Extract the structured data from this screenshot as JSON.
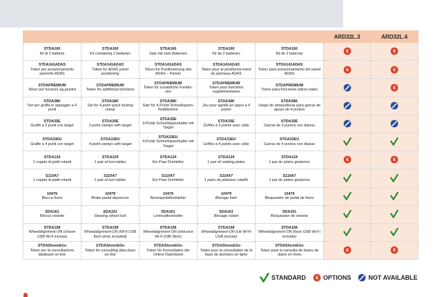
{
  "header": {
    "col_l3": "ARD32L.3",
    "col_l4": "ARD32L.4"
  },
  "rows": [
    {
      "cells": [
        {
          "code": "STDA160",
          "desc": "Kit di 2 batterie"
        },
        {
          "code": "STDA160",
          "desc": "Kit containing 2 batteries"
        },
        {
          "code": "STDA160",
          "desc": "Satz mit zwei Batterien"
        },
        {
          "code": "STDA160",
          "desc": "Kit de 2 batteries"
        },
        {
          "code": "STDA160",
          "desc": "Kit de 2 baterías"
        }
      ],
      "l3": "option",
      "l4": "option"
    },
    {
      "cells": [
        {
          "code": "STDA141ADAS",
          "desc": "Token per posizionamento pannello ADAS"
        },
        {
          "code": "STDA141ADAS",
          "desc": "Token for ADAS panel positioning"
        },
        {
          "code": "STDA141ADAS",
          "desc": "Token für Positionierung des ADAS – Panels"
        },
        {
          "code": "STDA141ADAS",
          "desc": "Token pour le positionne-ment du panneau ADAS"
        },
        {
          "code": "STDA141ADAS",
          "desc": "Token para posicionamiento del panel ADAS"
        }
      ],
      "l3": "option",
      "l4": "option"
    },
    {
      "cells": [
        {
          "code": "STDAPREMIUM",
          "desc": "Token per funzioni ag-giuntivi"
        },
        {
          "code": "STDAPREMIUM",
          "desc": "Token for additional functions"
        },
        {
          "code": "STDAPREMIUM",
          "desc": "Token für zusätzliche Funktio-nen"
        },
        {
          "code": "STDAPREMIUM",
          "desc": "Token pour fonctions supplémentaires"
        },
        {
          "code": "STDAPREMIUM",
          "desc": "Token para funciones adicio-nales"
        }
      ],
      "l3": "not_available",
      "l4": "option"
    },
    {
      "cells": [
        {
          "code": "STDA38K",
          "desc": "Set per graffa in appoggio a 4 punti"
        },
        {
          "code": "STDA38K",
          "desc": "Set for 4-point quick locking clamp"
        },
        {
          "code": "STDA38K",
          "desc": "Satz für 4-Punkt Schnellspann-Radklemme"
        },
        {
          "code": "STDA38K",
          "desc": "Jeu pour agrafe en appui à 4 points"
        },
        {
          "code": "STDA38K",
          "desc": "Juego de abrazaderas para garras de apoyo de 4 puntos"
        }
      ],
      "l3": "not_available",
      "l4": "not_available"
    },
    {
      "cells": [
        {
          "code": "STDA35E",
          "desc": "Graffe a 3 punti con target"
        },
        {
          "code": "STDA35E",
          "desc": "3-point clamps with target"
        },
        {
          "code": "STDA35E",
          "desc": "3-Punkt Schnellspannhalter mit Target"
        },
        {
          "code": "STDA35E",
          "desc": "Griffes à 3 points avec cible"
        },
        {
          "code": "STDA35E",
          "desc": "Garras de 3 puntos con dianas"
        }
      ],
      "l3": "not_available",
      "l4": "not_available"
    },
    {
      "cells": [
        {
          "code": "STDA33EU",
          "desc": "Graffe a 4 punti con target"
        },
        {
          "code": "STDA33EU",
          "desc": "4-point clamps with target"
        },
        {
          "code": "STDA33EU",
          "desc": "4-Punkt Schnellspannhalter mit Target"
        },
        {
          "code": "STDA33EU",
          "desc": "Griffes à 4 points avec cible"
        },
        {
          "code": "STDA33EU",
          "desc": "Garras de 4 puntos con dianas"
        }
      ],
      "l3": "standard",
      "l4": "standard"
    },
    {
      "cells": [
        {
          "code": "STDA124",
          "desc": "1 coppia di piatti rotanti"
        },
        {
          "code": "STDA124",
          "desc": "1 pair of turn tables"
        },
        {
          "code": "STDA124",
          "desc": "Ein Paar Drehteller"
        },
        {
          "code": "STDA124",
          "desc": "1 pair of rotating plates"
        },
        {
          "code": "STDA124",
          "desc": "1 par de platos giratorios"
        }
      ],
      "l3": "option",
      "l4": "option"
    },
    {
      "cells": [
        {
          "code": "S110A7",
          "desc": "1 coppia di piatti rotanti"
        },
        {
          "code": "S110A7",
          "desc": "1 pair of turn tables"
        },
        {
          "code": "S110A7",
          "desc": "Ein Paar Drehteller"
        },
        {
          "code": "S110A7",
          "desc": "1 paire de plateaux rotatifs"
        },
        {
          "code": "S110A7",
          "desc": "1 par de platos giratorios"
        }
      ],
      "l3": "standard",
      "l4": "standard"
    },
    {
      "cells": [
        {
          "code": "10479",
          "desc": "Blocca freno"
        },
        {
          "code": "10479",
          "desc": "Brake pedal depressor"
        },
        {
          "code": "10479",
          "desc": "Bremspedalfeststeller"
        },
        {
          "code": "10479",
          "desc": "Blocage frein"
        },
        {
          "code": "10479",
          "desc": "Bloqueador de pedal de freno"
        }
      ],
      "l3": "standard",
      "l4": "standard"
    },
    {
      "cells": [
        {
          "code": "SDA161",
          "desc": "Blocca volante"
        },
        {
          "code": "SDA161",
          "desc": "Steering wheel lock"
        },
        {
          "code": "SDA161",
          "desc": "Lenkradfeststeller"
        },
        {
          "code": "SDA161",
          "desc": "Blocage volant"
        },
        {
          "code": "SDA161",
          "desc": "Bloqueador de volante"
        }
      ],
      "l3": "standard",
      "l4": "standard"
    },
    {
      "cells": [
        {
          "code": "STDA158",
          "desc": "Wheelalignment-ON (chiave USB Wi-fi inclusa)"
        },
        {
          "code": "STDA158",
          "desc": "Wheelalignment-ON (Wi-fi USB flash drive included)"
        },
        {
          "code": "STDA158",
          "desc": "Wheelalignment-ON (inklusive Wi-fi USB-Stick)"
        },
        {
          "code": "STDA158",
          "desc": "Wheelalignment-ON (clé Wi-Fi USB incluse)"
        },
        {
          "code": "STDA158",
          "desc": "Wheelalignment-ON (llave USB Wi-Fi incluida)"
        }
      ],
      "l3": "standard",
      "l4": "standard"
    },
    {
      "cells": [
        {
          "code": "STDAShoot&Go",
          "desc": "Token per la consultazione database on-line"
        },
        {
          "code": "STDAShoot&Go",
          "desc": "Token for consulting data-base on-line"
        },
        {
          "code": "STDAShoot&Go",
          "desc": "Token für Konsultation der Online-Datenbank"
        },
        {
          "code": "STDAShoot&Go",
          "desc": "Token pour la consultation de la base de données en ligne"
        },
        {
          "code": "STDAShoot&Go",
          "desc": "Token para la consulta de bases de datos en línea"
        }
      ],
      "l3": "option",
      "l4": "option"
    }
  ],
  "legend": {
    "standard": "STANDARD",
    "options": "OPTIONS",
    "not_available": "NOT AVAILABLE"
  },
  "colors": {
    "header_bg": "#f6c9ac",
    "marker_cell_bg": "#fbe6da",
    "check": "#2e8b2e",
    "option": "#d9442d",
    "not_available": "#2c4f9c"
  }
}
